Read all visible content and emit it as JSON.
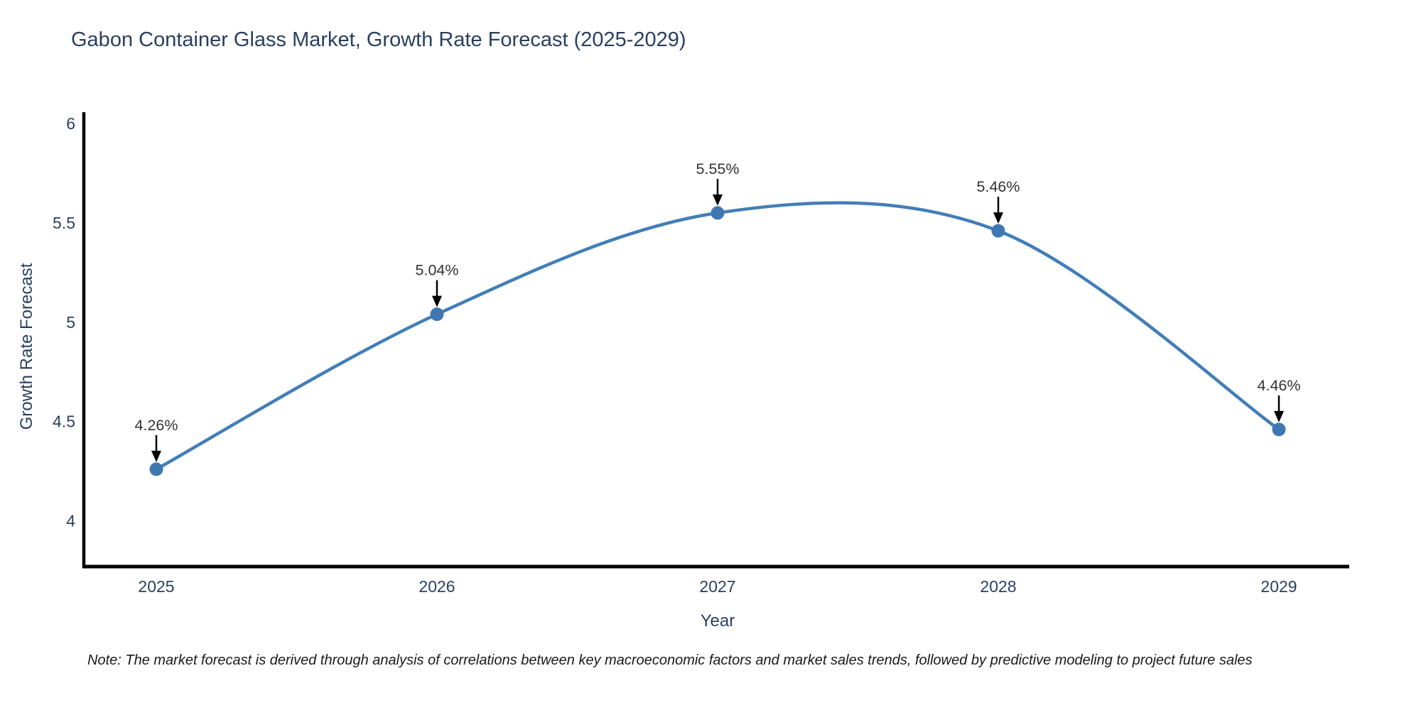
{
  "chart_data": {
    "type": "line",
    "title": "Gabon Container Glass Market, Growth Rate Forecast (2025-2029)",
    "x": [
      "2025",
      "2026",
      "2027",
      "2028",
      "2029"
    ],
    "series": [
      {
        "name": "Growth Rate Forecast",
        "values": [
          4.26,
          5.04,
          5.55,
          5.46,
          4.46
        ],
        "point_labels": [
          "4.26%",
          "5.04%",
          "5.55%",
          "5.46%",
          "4.46%"
        ]
      }
    ],
    "xlabel": "Year",
    "ylabel": "Growth Rate Forecast",
    "ylim": [
      3.77,
      6.05
    ],
    "yticks": [
      4,
      4.5,
      5,
      5.5,
      6
    ],
    "ytick_labels": [
      "4",
      "4.5",
      "5",
      "5.5",
      "6"
    ],
    "grid": false,
    "legend_position": "none",
    "line_shape": "spline",
    "annotations_have_arrows": true,
    "note": "Note: The market forecast is derived through analysis of correlations between key macroeconomic factors and market sales trends, followed by predictive modeling to project future sales"
  },
  "colors": {
    "line": "#427EB8",
    "marker": "#3E78B2",
    "title_text": "#2a3f5f",
    "axis_text": "#2a3f5f",
    "annotation_text": "#333333",
    "axis_line": "#000000",
    "note_text": "#1a1a1a",
    "background": "#ffffff"
  }
}
